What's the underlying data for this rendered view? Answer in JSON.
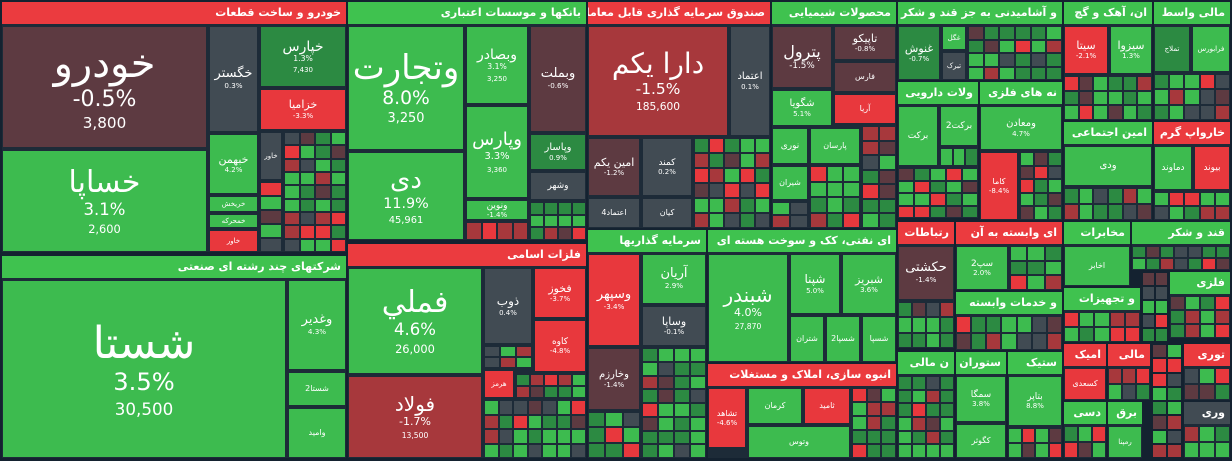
{
  "sectors": [
    {
      "title": "خودرو و ساخت قطعات",
      "tiles": [
        {
          "name": "خودرو",
          "change": "-0.5%",
          "price": "3,800"
        },
        {
          "name": "خساپا",
          "change": "3.1%",
          "price": "2,600"
        },
        {
          "name": "خگستر",
          "change": "0.3%"
        },
        {
          "name": "خپارس",
          "change": "1.3%",
          "price": "7,430"
        },
        {
          "name": "خزامیا",
          "change": "-3.3%"
        },
        {
          "name": "خبهمن",
          "change": "4.2%"
        },
        {
          "name": "خاور"
        },
        {
          "name": "خریخش"
        },
        {
          "name": "خمحرکه"
        },
        {
          "name": "خاور"
        }
      ]
    },
    {
      "title": "بانکها و موسسات اعتباری",
      "tiles": [
        {
          "name": "وتجارت",
          "change": "8.0%",
          "price": "3,250"
        },
        {
          "name": "دی",
          "change": "11.9%",
          "price": "45,961"
        },
        {
          "name": "وبصادر",
          "change": "3.1%",
          "price": "3,250"
        },
        {
          "name": "وبملت",
          "change": "-0.6%"
        },
        {
          "name": "وپارس",
          "change": "3.3%",
          "price": "3,360"
        },
        {
          "name": "وپاسار",
          "change": "0.9%"
        },
        {
          "name": "وشهر"
        },
        {
          "name": "ونوین",
          "change": "-1.4%"
        }
      ]
    },
    {
      "title": "صندوق سرمایه گذاری قابل معامله",
      "tiles": [
        {
          "name": "دارا یکم",
          "change": "-1.5%",
          "price": "185,600"
        },
        {
          "name": "اعتماد",
          "change": "0.1%"
        },
        {
          "name": "امین یکم",
          "change": "-1.2%"
        },
        {
          "name": "کمند",
          "change": "0.2%"
        },
        {
          "name": "اعتماد4"
        },
        {
          "name": "کیان"
        }
      ]
    },
    {
      "title": "محصولات شیمیایی",
      "tiles": [
        {
          "name": "پترول",
          "change": "-1.5%"
        },
        {
          "name": "تاپیکو",
          "change": "-0.8%"
        },
        {
          "name": "فارس"
        },
        {
          "name": "آریا"
        },
        {
          "name": "شگویا",
          "change": "5.1%"
        },
        {
          "name": "نوری"
        },
        {
          "name": "پارسان"
        },
        {
          "name": "شیران"
        }
      ]
    },
    {
      "title": "و آشامیدنی به جز قند و شکر",
      "tiles": [
        {
          "name": "غنوش",
          "change": "-0.7%"
        },
        {
          "name": "غگل"
        },
        {
          "name": "تبرک"
        }
      ]
    },
    {
      "title": "ان، آهک و گچ",
      "tiles": [
        {
          "name": "سیتا",
          "change": "-2.1%"
        },
        {
          "name": "سیزوا",
          "change": "1.3%"
        }
      ]
    },
    {
      "title": "مالی واسط",
      "tiles": [
        {
          "name": "تملاج"
        },
        {
          "name": "فرابورس"
        }
      ]
    },
    {
      "title": "ولات دارویی",
      "tiles": [
        {
          "name": "برکت"
        },
        {
          "name": "برکت2"
        }
      ]
    },
    {
      "title": "نه های فلزی",
      "tiles": [
        {
          "name": "ومعادن",
          "change": "4.7%"
        },
        {
          "name": "کاما",
          "change": "-8.4%"
        }
      ]
    },
    {
      "title": "امین اجتماعی",
      "tiles": [
        {
          "name": "ودی"
        }
      ]
    },
    {
      "title": "خارواپ گرم",
      "tiles": [
        {
          "name": "دماوند"
        },
        {
          "name": "بیوند"
        }
      ]
    },
    {
      "title": "شرکتهای چند رشته ای صنعتی",
      "tiles": [
        {
          "name": "شستا",
          "change": "3.5%",
          "price": "30,500"
        },
        {
          "name": "وغدیر",
          "change": "4.3%"
        },
        {
          "name": "شستا2"
        },
        {
          "name": "وامید"
        }
      ]
    },
    {
      "title": "فلزات اسامی",
      "tiles": [
        {
          "name": "فملي",
          "change": "4.6%",
          "price": "26,000"
        },
        {
          "name": "فولاد",
          "change": "-1.7%",
          "price": "13,500"
        },
        {
          "name": "ذوب",
          "change": "0.4%"
        },
        {
          "name": "فخوز",
          "change": "-3.7%"
        },
        {
          "name": "کاوه",
          "change": "-4.8%"
        },
        {
          "name": "هرمز"
        }
      ]
    },
    {
      "title": "سرمایه گذاریها",
      "tiles": [
        {
          "name": "وسپهر",
          "change": "-3.4%"
        },
        {
          "name": "آریان",
          "change": "2.9%"
        },
        {
          "name": "وساپا",
          "change": "-0.1%"
        },
        {
          "name": "وخارزم",
          "change": "-1.4%"
        }
      ]
    },
    {
      "title": "ای نفتی، کک و سوخت هسته ای",
      "tiles": [
        {
          "name": "شبندر",
          "change": "4.0%",
          "price": "27,870"
        },
        {
          "name": "شپنا",
          "change": "5.0%"
        },
        {
          "name": "شبریز",
          "change": "3.6%"
        },
        {
          "name": "شتران"
        },
        {
          "name": "شسپا2"
        },
        {
          "name": "شسپا"
        }
      ]
    },
    {
      "title": "انبوه سازی، املاک و مستغلات",
      "tiles": [
        {
          "name": "تشاهد",
          "change": "-4.6%"
        },
        {
          "name": "کرمان"
        },
        {
          "name": "ثامید"
        },
        {
          "name": "وتوس"
        }
      ]
    },
    {
      "title": "رتباطات",
      "tiles": [
        {
          "name": "حکشتی",
          "change": "-1.4%"
        }
      ]
    },
    {
      "title": "ای وابسته به آن",
      "tiles": [
        {
          "name": "سپ2",
          "change": "2.0%"
        }
      ]
    },
    {
      "title": "و خدمات وابسته",
      "tiles": []
    },
    {
      "title": "مخابرات",
      "tiles": [
        {
          "name": "اخابر"
        }
      ]
    },
    {
      "title": "قند و شکر",
      "tiles": []
    },
    {
      "title": "و تجهیزات",
      "tiles": []
    },
    {
      "title": "فلزی",
      "tiles": []
    },
    {
      "title": "ن مالی",
      "tiles": []
    },
    {
      "title": "ستوران",
      "tiles": [
        {
          "name": "سمگا",
          "change": "3.8%"
        },
        {
          "name": "کگوثر"
        }
      ]
    },
    {
      "title": "ستیک",
      "tiles": [
        {
          "name": "بتاپر",
          "change": "8.8%"
        }
      ]
    },
    {
      "title": "امیک",
      "tiles": [
        {
          "name": "کسعدی"
        }
      ]
    },
    {
      "title": "مالی",
      "tiles": []
    },
    {
      "title": "توری",
      "tiles": []
    },
    {
      "title": "دسی",
      "tiles": []
    },
    {
      "title": "برق",
      "tiles": [
        {
          "name": "رمپنا"
        }
      ]
    },
    {
      "title": "وری",
      "tiles": []
    }
  ]
}
